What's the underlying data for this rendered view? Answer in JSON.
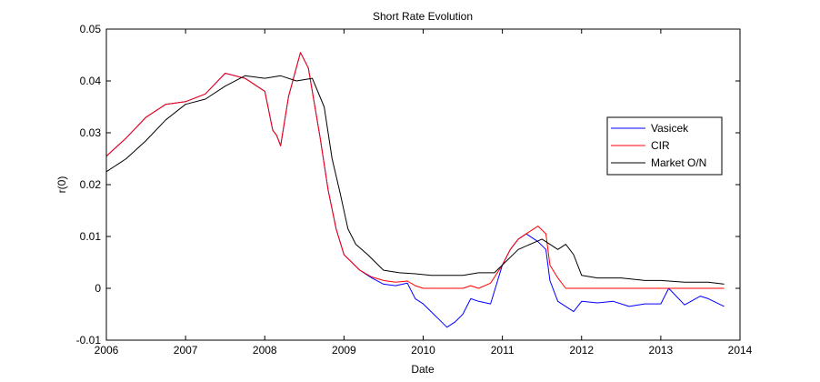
{
  "chart_data": {
    "type": "line",
    "title": "Short Rate Evolution",
    "xlabel": "Date",
    "ylabel": "r(0)",
    "xlim": [
      2006,
      2014
    ],
    "ylim": [
      -0.01,
      0.05
    ],
    "x_ticks": [
      "2006",
      "2007",
      "2008",
      "2009",
      "2010",
      "2011",
      "2012",
      "2013",
      "2014"
    ],
    "y_ticks": [
      "-0.01",
      "0",
      "0.01",
      "0.02",
      "0.03",
      "0.04",
      "0.05"
    ],
    "grid": false,
    "legend_position": "right",
    "series": [
      {
        "name": "Vasicek",
        "color": "#0000ff",
        "x": [
          2006.0,
          2006.25,
          2006.5,
          2006.75,
          2007.0,
          2007.25,
          2007.5,
          2007.75,
          2008.0,
          2008.1,
          2008.15,
          2008.2,
          2008.3,
          2008.45,
          2008.55,
          2008.7,
          2008.8,
          2008.9,
          2009.0,
          2009.1,
          2009.2,
          2009.35,
          2009.5,
          2009.65,
          2009.8,
          2009.9,
          2010.0,
          2010.1,
          2010.2,
          2010.3,
          2010.4,
          2010.5,
          2010.6,
          2010.7,
          2010.85,
          2011.0,
          2011.1,
          2011.2,
          2011.3,
          2011.45,
          2011.55,
          2011.6,
          2011.7,
          2011.8,
          2011.9,
          2012.0,
          2012.2,
          2012.4,
          2012.6,
          2012.8,
          2013.0,
          2013.1,
          2013.3,
          2013.5,
          2013.6,
          2013.8
        ],
        "y": [
          0.0255,
          0.029,
          0.033,
          0.0355,
          0.036,
          0.0375,
          0.0415,
          0.0405,
          0.038,
          0.0305,
          0.0295,
          0.0275,
          0.037,
          0.0455,
          0.0425,
          0.029,
          0.019,
          0.0115,
          0.0065,
          0.005,
          0.0035,
          0.002,
          0.0008,
          0.0005,
          0.001,
          -0.002,
          -0.003,
          -0.0045,
          -0.006,
          -0.0075,
          -0.0065,
          -0.005,
          -0.002,
          -0.0025,
          -0.003,
          0.0045,
          0.0075,
          0.0095,
          0.0105,
          0.009,
          0.0075,
          0.0015,
          -0.0025,
          -0.0035,
          -0.0045,
          -0.0025,
          -0.0028,
          -0.0025,
          -0.0035,
          -0.003,
          -0.003,
          0.0,
          -0.0032,
          -0.0015,
          -0.002,
          -0.0035
        ]
      },
      {
        "name": "CIR",
        "color": "#ff0000",
        "x": [
          2006.0,
          2006.25,
          2006.5,
          2006.75,
          2007.0,
          2007.25,
          2007.5,
          2007.75,
          2008.0,
          2008.1,
          2008.15,
          2008.2,
          2008.3,
          2008.45,
          2008.55,
          2008.7,
          2008.8,
          2008.9,
          2009.0,
          2009.1,
          2009.2,
          2009.35,
          2009.5,
          2009.65,
          2009.8,
          2009.9,
          2010.0,
          2010.2,
          2010.5,
          2010.6,
          2010.7,
          2010.85,
          2011.0,
          2011.1,
          2011.2,
          2011.3,
          2011.45,
          2011.55,
          2011.6,
          2011.7,
          2011.8,
          2011.9,
          2012.0,
          2012.5,
          2013.0,
          2013.5,
          2013.8
        ],
        "y": [
          0.0255,
          0.029,
          0.033,
          0.0355,
          0.036,
          0.0375,
          0.0415,
          0.0405,
          0.038,
          0.0305,
          0.0295,
          0.0275,
          0.037,
          0.0455,
          0.0425,
          0.029,
          0.019,
          0.0115,
          0.0065,
          0.005,
          0.0035,
          0.0022,
          0.0015,
          0.0012,
          0.0014,
          0.0005,
          0.0,
          0.0,
          0.0,
          0.0005,
          0.0,
          0.001,
          0.0045,
          0.0075,
          0.0095,
          0.0105,
          0.012,
          0.0105,
          0.0045,
          0.002,
          0.0,
          0.0,
          0.0,
          0.0,
          0.0,
          0.0,
          0.0
        ]
      },
      {
        "name": "Market O/N",
        "color": "#000000",
        "x": [
          2006.0,
          2006.25,
          2006.5,
          2006.75,
          2007.0,
          2007.25,
          2007.5,
          2007.75,
          2008.0,
          2008.2,
          2008.4,
          2008.6,
          2008.75,
          2008.85,
          2008.95,
          2009.05,
          2009.15,
          2009.3,
          2009.5,
          2009.7,
          2009.9,
          2010.1,
          2010.3,
          2010.5,
          2010.7,
          2010.9,
          2011.0,
          2011.2,
          2011.35,
          2011.5,
          2011.6,
          2011.7,
          2011.8,
          2011.9,
          2012.0,
          2012.2,
          2012.5,
          2012.8,
          2013.0,
          2013.3,
          2013.6,
          2013.8
        ],
        "y": [
          0.0225,
          0.025,
          0.0285,
          0.0325,
          0.0355,
          0.0365,
          0.039,
          0.041,
          0.0405,
          0.041,
          0.04,
          0.0405,
          0.035,
          0.025,
          0.0185,
          0.0115,
          0.0085,
          0.0065,
          0.0035,
          0.003,
          0.0028,
          0.0025,
          0.0025,
          0.0025,
          0.003,
          0.003,
          0.0045,
          0.0075,
          0.0085,
          0.0095,
          0.0085,
          0.0075,
          0.0085,
          0.0065,
          0.0025,
          0.002,
          0.002,
          0.0015,
          0.0015,
          0.0012,
          0.0012,
          0.0008
        ]
      }
    ]
  }
}
